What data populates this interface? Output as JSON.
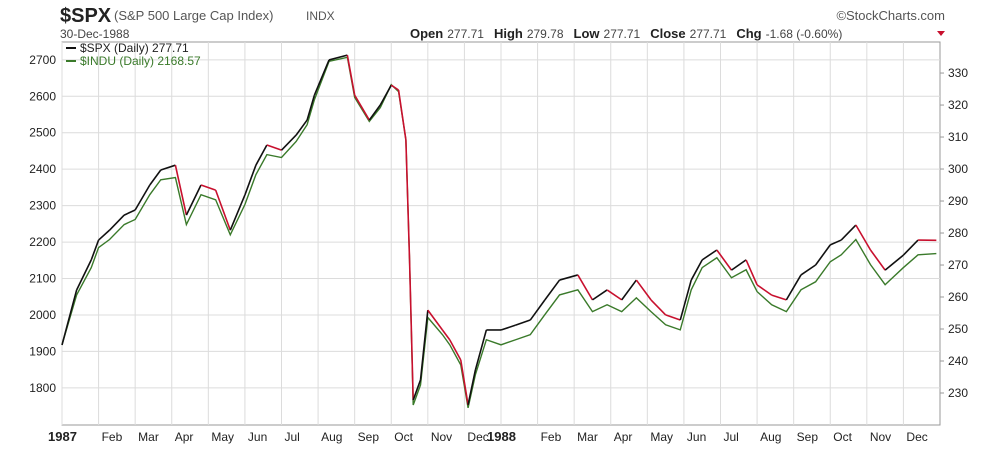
{
  "header": {
    "symbol": "$SPX",
    "name": "(S&P 500 Large Cap Index)",
    "exchange": "INDX",
    "date": "30-Dec-1988",
    "brand": "©StockCharts.com",
    "quote": [
      {
        "label": "Open",
        "value": "277.71"
      },
      {
        "label": "High",
        "value": "279.78"
      },
      {
        "label": "Low",
        "value": "277.71"
      },
      {
        "label": "Close",
        "value": "277.71"
      },
      {
        "label": "Chg",
        "value": "-1.68 (-0.60%)"
      }
    ]
  },
  "chart_data": {
    "type": "line",
    "x": [
      0,
      0.4,
      0.8,
      1.0,
      1.3,
      1.7,
      2.0,
      2.4,
      2.7,
      3.1,
      3.4,
      3.8,
      4.2,
      4.6,
      5.0,
      5.3,
      5.6,
      6.0,
      6.4,
      6.7,
      6.9,
      7.3,
      7.8,
      8.0,
      8.4,
      8.7,
      9.0,
      9.2,
      9.4,
      9.5,
      9.6,
      9.8,
      10.0,
      10.4,
      10.6,
      10.9,
      11.1,
      11.3,
      11.6,
      12.0,
      12.4,
      12.8,
      13.2,
      13.6,
      14.1,
      14.5,
      14.9,
      15.3,
      15.7,
      16.1,
      16.5,
      16.9,
      17.2,
      17.5,
      17.9,
      18.3,
      18.7,
      19.0,
      19.4,
      19.8,
      20.2,
      20.6,
      21.0,
      21.3,
      21.7,
      22.1,
      22.5,
      23.0,
      23.4,
      23.9
    ],
    "series": [
      {
        "name": "$SPX (Daily) 277.71",
        "color": "#111111",
        "down_color": "#c8102e",
        "axis": "y2",
        "values": [
          245.0,
          262.2,
          271.6,
          277.8,
          280.9,
          285.6,
          287.2,
          295.0,
          299.7,
          301.2,
          285.6,
          295.0,
          293.4,
          280.9,
          291.9,
          301.2,
          307.5,
          305.9,
          310.6,
          315.3,
          323.1,
          334.1,
          335.6,
          323.1,
          315.3,
          320.0,
          326.2,
          324.7,
          309.1,
          271.6,
          227.8,
          234.1,
          255.9,
          249.7,
          246.6,
          240.3,
          226.3,
          237.2,
          249.7,
          249.7,
          251.2,
          252.8,
          259.1,
          265.3,
          266.9,
          259.1,
          262.2,
          259.1,
          265.3,
          259.1,
          254.4,
          252.8,
          265.3,
          271.6,
          274.7,
          268.4,
          271.6,
          263.8,
          260.6,
          259.1,
          266.9,
          270.0,
          276.3,
          277.8,
          282.5,
          274.7,
          268.4,
          273.1,
          277.8,
          277.71
        ]
      },
      {
        "name": "$INDU (Daily) 2168.57",
        "color": "#3a7a2a",
        "values": [
          1918,
          2055,
          2130,
          2185,
          2207,
          2248,
          2262,
          2330,
          2371,
          2377,
          2248,
          2330,
          2316,
          2220,
          2303,
          2385,
          2440,
          2432,
          2476,
          2522,
          2591,
          2696,
          2707,
          2597,
          2531,
          2569,
          2632,
          2613,
          2481,
          2152,
          1753,
          1808,
          1993,
          1946,
          1918,
          1863,
          1745,
          1836,
          1932,
          1918,
          1932,
          1946,
          2001,
          2055,
          2069,
          2009,
          2028,
          2009,
          2047,
          2009,
          1973,
          1959,
          2069,
          2130,
          2157,
          2102,
          2124,
          2064,
          2028,
          2009,
          2069,
          2091,
          2146,
          2165,
          2207,
          2138,
          2083,
          2130,
          2165,
          2168.57
        ]
      }
    ],
    "xlim": [
      0,
      24
    ],
    "xticks": [
      {
        "value": 0,
        "label": "1987"
      },
      {
        "value": 1,
        "label": "Feb"
      },
      {
        "value": 2,
        "label": "Mar"
      },
      {
        "value": 3,
        "label": "Apr"
      },
      {
        "value": 4,
        "label": "May"
      },
      {
        "value": 5,
        "label": "Jun"
      },
      {
        "value": 6,
        "label": "Jul"
      },
      {
        "value": 7,
        "label": "Aug"
      },
      {
        "value": 8,
        "label": "Sep"
      },
      {
        "value": 9,
        "label": "Oct"
      },
      {
        "value": 10,
        "label": "Nov"
      },
      {
        "value": 11,
        "label": "Dec"
      },
      {
        "value": 12,
        "label": "1988"
      },
      {
        "value": 13,
        "label": "Feb"
      },
      {
        "value": 14,
        "label": "Mar"
      },
      {
        "value": 15,
        "label": "Apr"
      },
      {
        "value": 16,
        "label": "May"
      },
      {
        "value": 17,
        "label": "Jun"
      },
      {
        "value": 18,
        "label": "Jul"
      },
      {
        "value": 19,
        "label": "Aug"
      },
      {
        "value": 20,
        "label": "Sep"
      },
      {
        "value": 21,
        "label": "Oct"
      },
      {
        "value": 22,
        "label": "Nov"
      },
      {
        "value": 23,
        "label": "Dec"
      }
    ],
    "ylim": [
      1698,
      2749
    ],
    "yticks": [
      1800,
      1900,
      2000,
      2100,
      2200,
      2300,
      2400,
      2500,
      2600,
      2700
    ],
    "y2lim": [
      220,
      339.7
    ],
    "y2ticks": [
      230,
      240,
      250,
      260,
      270,
      280,
      290,
      300,
      310,
      320,
      330
    ],
    "grid": true
  }
}
